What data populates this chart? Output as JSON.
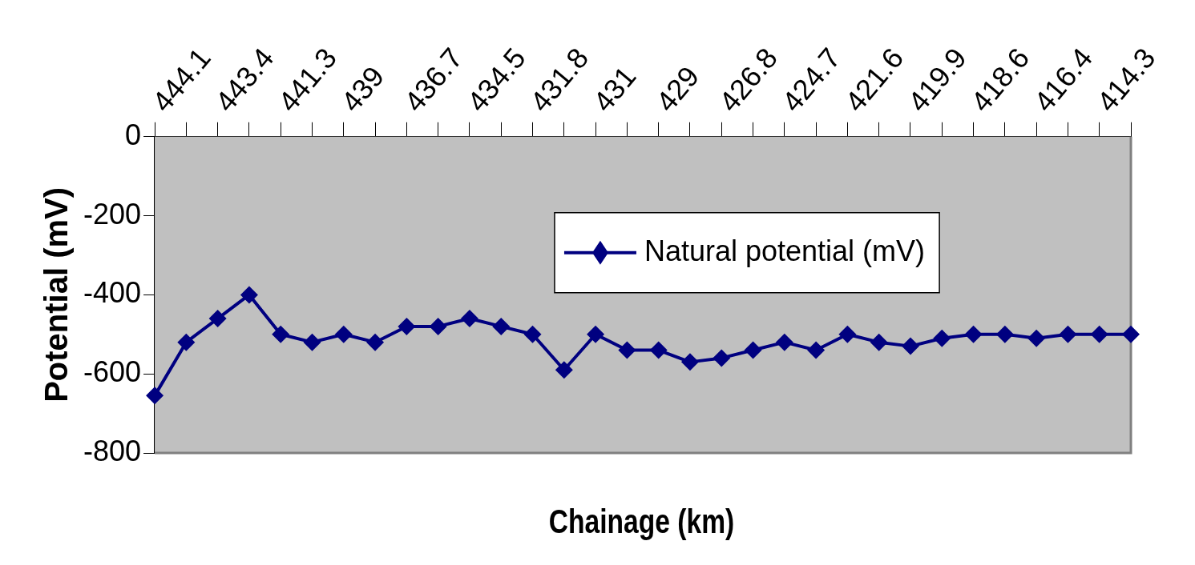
{
  "chart_data": {
    "type": "line",
    "xlabel": "Chainage (km)",
    "ylabel": "Potential (mV)",
    "categories": [
      null,
      "444.1",
      null,
      "443.4",
      null,
      "441.3",
      null,
      "439",
      null,
      "436.7",
      null,
      "434.5",
      null,
      "431.8",
      null,
      "431",
      null,
      "429",
      null,
      "426.8",
      null,
      "424.7",
      null,
      "421.6",
      null,
      "419.9",
      null,
      "418.6",
      null,
      "416.4",
      null,
      "414.3"
    ],
    "series": [
      {
        "name": "Natural potential (mV)",
        "color": "#000080",
        "values": [
          -655,
          -520,
          -460,
          -400,
          -500,
          -520,
          -500,
          -520,
          -480,
          -480,
          -460,
          -480,
          -500,
          -590,
          -500,
          -540,
          -540,
          -570,
          -560,
          -540,
          -520,
          -540,
          -500,
          -520,
          -530,
          -510,
          -500,
          -500,
          -510,
          -500,
          -500,
          -500
        ]
      }
    ],
    "ylim": [
      -800,
      0
    ],
    "yticks": [
      0,
      -200,
      -400,
      -600,
      -800
    ],
    "legend": "top",
    "marker": "diamond",
    "line_style": "solid"
  }
}
